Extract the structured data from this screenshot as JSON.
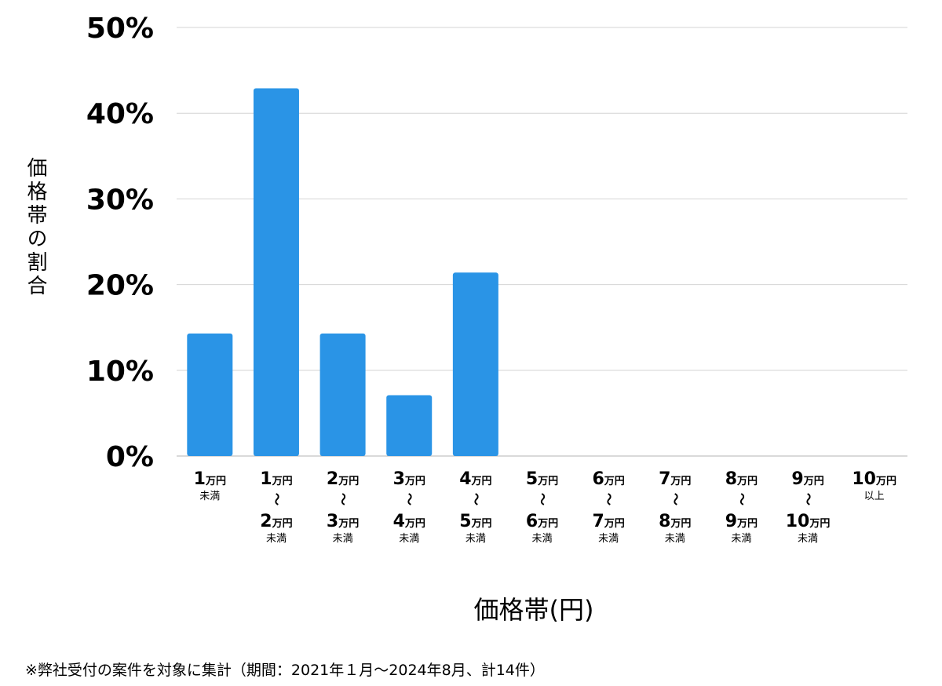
{
  "chart_data": {
    "type": "bar",
    "ylabel": "価格帯の割合",
    "xlabel": "価格帯(円)",
    "ylim": [
      0,
      50
    ],
    "yticks": [
      "0%",
      "10%",
      "20%",
      "30%",
      "40%",
      "50%"
    ],
    "grid": true,
    "color": "#2a94e6",
    "unit_suffix": "万円",
    "tilde": "〜",
    "categories": [
      {
        "from": "1",
        "to": null,
        "note": "未満"
      },
      {
        "from": "1",
        "to": "2",
        "note": "未満"
      },
      {
        "from": "2",
        "to": "3",
        "note": "未満"
      },
      {
        "from": "3",
        "to": "4",
        "note": "未満"
      },
      {
        "from": "4",
        "to": "5",
        "note": "未満"
      },
      {
        "from": "5",
        "to": "6",
        "note": "未満"
      },
      {
        "from": "6",
        "to": "7",
        "note": "未満"
      },
      {
        "from": "7",
        "to": "8",
        "note": "未満"
      },
      {
        "from": "8",
        "to": "9",
        "note": "未満"
      },
      {
        "from": "9",
        "to": "10",
        "note": "未満"
      },
      {
        "from": "10",
        "to": null,
        "note": "以上"
      }
    ],
    "values": [
      14.3,
      42.9,
      14.3,
      7.1,
      21.4,
      0,
      0,
      0,
      0,
      0,
      0
    ]
  },
  "footnote": "※弊社受付の案件を対象に集計（期間：2021年１月～2024年8月、計14件）"
}
